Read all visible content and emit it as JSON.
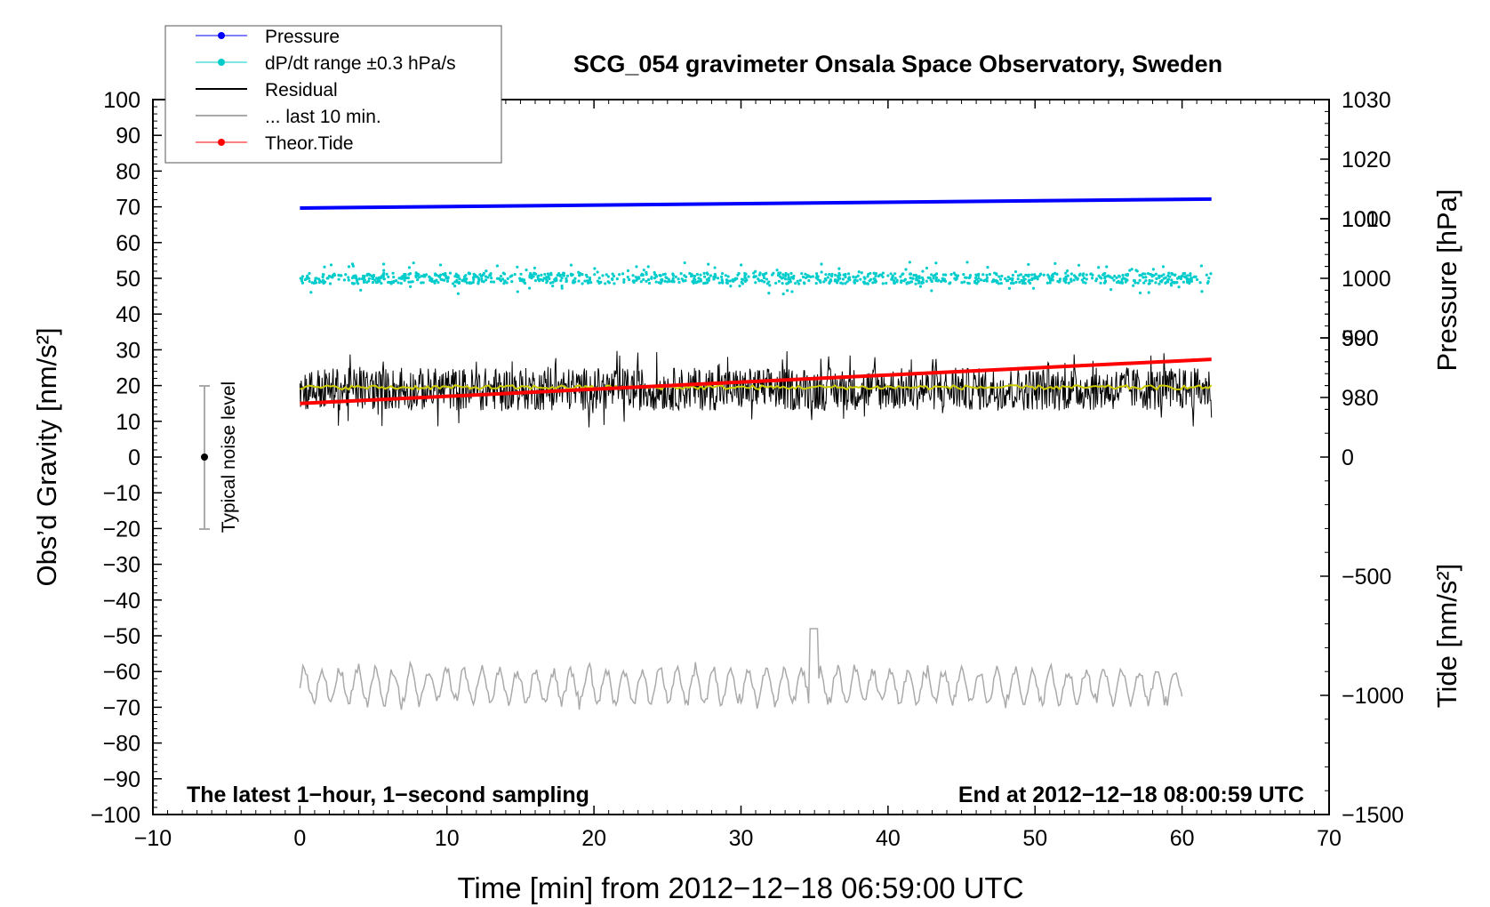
{
  "chart_data": {
    "type": "line",
    "title": "SCG_054 gravimeter Onsala Space Observatory, Sweden",
    "xlabel": "Time [min] from 2012−12−18 06:59:00 UTC",
    "ylabel_left": "Obs’d Gravity [nm/s²]",
    "ylabel_right_top": "Pressure [hPa]",
    "ylabel_right_bottom": "Tide [nm/s²]",
    "xlim": [
      -10,
      70
    ],
    "ylim_left": [
      -100,
      100
    ],
    "ylim_pressure": [
      970,
      1030
    ],
    "ylim_tide": [
      -1500,
      1500
    ],
    "x_ticks": [
      -10,
      0,
      10,
      20,
      30,
      40,
      50,
      60,
      70
    ],
    "x_tick_labels": [
      "−10",
      "0",
      "10",
      "20",
      "30",
      "40",
      "50",
      "60",
      "70"
    ],
    "y_left_ticks": [
      100,
      90,
      80,
      70,
      60,
      50,
      40,
      30,
      20,
      10,
      0,
      -10,
      -20,
      -30,
      -40,
      -50,
      -60,
      -70,
      -80,
      -90,
      -100
    ],
    "y_left_tick_labels": [
      "100",
      "90",
      "80",
      "70",
      "60",
      "50",
      "40",
      "30",
      "20",
      "10",
      "0",
      "−10",
      "−20",
      "−30",
      "−40",
      "−50",
      "−60",
      "−70",
      "−80",
      "−90",
      "−100"
    ],
    "pressure_ticks": [
      1030,
      1020,
      1010,
      1000,
      990,
      980
    ],
    "pressure_tick_labels": [
      "1030",
      "1020",
      "1010",
      "1000",
      "990",
      "980"
    ],
    "tide_ticks": [
      1000,
      500,
      0,
      -500,
      -1000,
      -1500
    ],
    "tide_tick_labels": [
      "1000",
      "500",
      "0",
      "−500",
      "−1000",
      "−1500"
    ],
    "legend_position": "top-left",
    "legend": [
      {
        "label": "Pressure",
        "color": "#0000ff",
        "style": "line-dot"
      },
      {
        "label": "dP/dt range ±0.3 hPa/s",
        "color": "#00cccc",
        "style": "line-dot"
      },
      {
        "label": "Residual",
        "color": "#000000",
        "style": "line"
      },
      {
        "label": "... last 10 min.",
        "color": "#aaaaaa",
        "style": "line"
      },
      {
        "label": "Theor.Tide",
        "color": "#ff0000",
        "style": "line-dot"
      }
    ],
    "noise_bar": {
      "label": "Typical noise level",
      "x": -7,
      "center": 0,
      "low": -20,
      "high": 20
    },
    "annotation_left": "The latest 1−hour, 1−second sampling",
    "annotation_right": "End at 2012−12−18 08:00:59 UTC",
    "series": [
      {
        "name": "Pressure",
        "color": "#0000ff",
        "axis": "pressure",
        "x": [
          0,
          62
        ],
        "y": [
          1011.8,
          1013.3
        ]
      },
      {
        "name": "dP/dt range ±0.3 hPa/s",
        "color": "#00cccc",
        "axis": "left",
        "kind": "scatter",
        "x_range": [
          0,
          62
        ],
        "center": 50,
        "spread": 1.5
      },
      {
        "name": "Residual",
        "color": "#000000",
        "axis": "left",
        "kind": "noise",
        "x_range": [
          0,
          62
        ],
        "center": 19,
        "spread": 6
      },
      {
        "name": "Residual smoothed",
        "color": "#cccc00",
        "axis": "left",
        "x_range": [
          0,
          62
        ],
        "center": 19.5
      },
      {
        "name": "Theor.Tide",
        "color": "#ff0000",
        "axis": "tide",
        "x": [
          0,
          62
        ],
        "y": [
          225,
          410
        ]
      },
      {
        "name": "... last 10 min.",
        "color": "#aaaaaa",
        "axis": "left",
        "kind": "oscillation",
        "x_range": [
          0,
          60
        ],
        "center": -64,
        "amplitude": 5
      }
    ]
  }
}
